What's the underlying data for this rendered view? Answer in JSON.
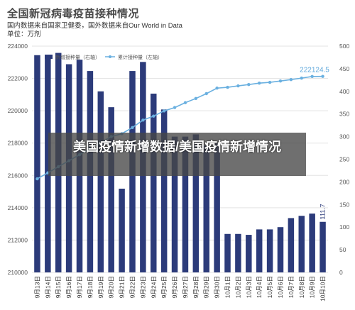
{
  "header": {
    "title": "全国新冠病毒疫苗接种情况",
    "subtitle_line1": "国内数据来自国家卫健委，国外数据来自Our World in Data",
    "subtitle_line2": "单位：万剂"
  },
  "overlay": {
    "text": "美国疫情新增数据/美国疫情新增情况"
  },
  "colors": {
    "bar": "#2c3b7a",
    "line": "#6ab0e0",
    "grid": "#e3e3e3",
    "axis_text": "#555555"
  },
  "chart_data": {
    "type": "bar",
    "title": "全国新冠病毒疫苗接种情况",
    "categories": [
      "9月13日",
      "9月14日",
      "9月15日",
      "9月16日",
      "9月17日",
      "9月18日",
      "9月19日",
      "9月20日",
      "9月21日",
      "9月22日",
      "9月23日",
      "9月24日",
      "9月25日",
      "9月26日",
      "9月27日",
      "9月28日",
      "9月29日",
      "9月30日",
      "10月1日",
      "10月2日",
      "10月3日",
      "10月4日",
      "10月5日",
      "10月6日",
      "10月7日",
      "10月8日",
      "10月9日",
      "10月10日"
    ],
    "series": [
      {
        "name": "新增接种量（右轴）",
        "kind": "bar",
        "axis": "right",
        "values": [
          480,
          480,
          485,
          460,
          470,
          445,
          400,
          365,
          185,
          445,
          465,
          395,
          360,
          300,
          300,
          305,
          280,
          285,
          85,
          85,
          83,
          95,
          95,
          100,
          120,
          125,
          130,
          111.7
        ]
      },
      {
        "name": "累计接种量（左轴）",
        "kind": "line",
        "axis": "left",
        "values": [
          215790,
          216160,
          216540,
          216910,
          217280,
          217650,
          218030,
          218400,
          218580,
          218960,
          219420,
          219670,
          219990,
          220200,
          220500,
          220760,
          221060,
          221400,
          221450,
          221540,
          221620,
          221710,
          221760,
          221840,
          221930,
          222020,
          222120,
          222124.5
        ]
      }
    ],
    "y_left": {
      "min": 210000,
      "max": 224000,
      "ticks": [
        "210000",
        "212000",
        "214000",
        "216000",
        "218000",
        "220000",
        "222000",
        "224000"
      ]
    },
    "y_right": {
      "min": 0,
      "max": 500,
      "ticks": [
        "0",
        "50",
        "100",
        "150",
        "200",
        "250",
        "300",
        "350",
        "400",
        "450",
        "500"
      ]
    },
    "legend": {
      "position": "top-left",
      "bar_label": "新增接种量（右轴）",
      "line_label": "累计接种量（左轴）"
    },
    "annotations": {
      "last_bar_label": "111.7",
      "last_line_label": "222124.5"
    },
    "grid": true
  }
}
